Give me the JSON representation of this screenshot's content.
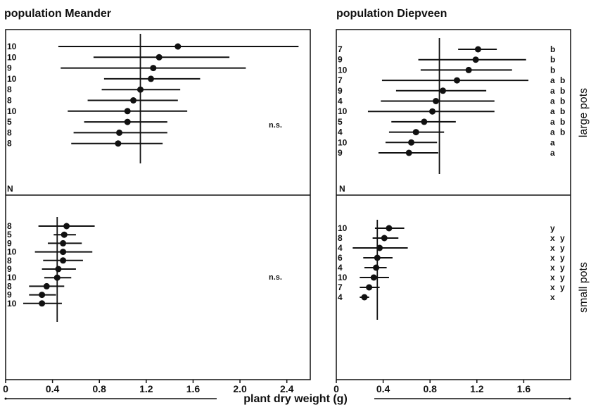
{
  "chart_data": {
    "type": "forest",
    "xlabel": "plant dry weight (g)",
    "row_labels": [
      "large pots",
      "small pots"
    ],
    "n_label": "N",
    "panels": [
      {
        "title": "population Meander",
        "xlim": [
          0,
          2.6
        ],
        "xticks": [
          0,
          0.4,
          0.8,
          1.2,
          1.6,
          2.0,
          2.4
        ],
        "xtick_labels": [
          "0",
          "0.4",
          "0.8",
          "1.2",
          "1.6",
          "2.0",
          "2.4"
        ],
        "large_pots": {
          "mean_line": 1.15,
          "annotation": "n.s.",
          "items": [
            {
              "n": "10",
              "mean": 1.47,
              "low": 0.45,
              "high": 2.5,
              "group": ""
            },
            {
              "n": "10",
              "mean": 1.31,
              "low": 0.75,
              "high": 1.91,
              "group": ""
            },
            {
              "n": "9",
              "mean": 1.26,
              "low": 0.47,
              "high": 2.05,
              "group": ""
            },
            {
              "n": "10",
              "mean": 1.24,
              "low": 0.84,
              "high": 1.66,
              "group": ""
            },
            {
              "n": "8",
              "mean": 1.15,
              "low": 0.82,
              "high": 1.49,
              "group": ""
            },
            {
              "n": "8",
              "mean": 1.09,
              "low": 0.7,
              "high": 1.47,
              "group": ""
            },
            {
              "n": "10",
              "mean": 1.04,
              "low": 0.53,
              "high": 1.55,
              "group": ""
            },
            {
              "n": "5",
              "mean": 1.04,
              "low": 0.67,
              "high": 1.38,
              "group": ""
            },
            {
              "n": "8",
              "mean": 0.97,
              "low": 0.58,
              "high": 1.38,
              "group": ""
            },
            {
              "n": "8",
              "mean": 0.96,
              "low": 0.56,
              "high": 1.34,
              "group": ""
            }
          ]
        },
        "small_pots": {
          "mean_line": 0.44,
          "annotation": "n.s.",
          "items": [
            {
              "n": "8",
              "mean": 0.52,
              "low": 0.28,
              "high": 0.76,
              "group": ""
            },
            {
              "n": "5",
              "mean": 0.5,
              "low": 0.41,
              "high": 0.6,
              "group": ""
            },
            {
              "n": "9",
              "mean": 0.49,
              "low": 0.36,
              "high": 0.65,
              "group": ""
            },
            {
              "n": "10",
              "mean": 0.49,
              "low": 0.25,
              "high": 0.74,
              "group": ""
            },
            {
              "n": "8",
              "mean": 0.49,
              "low": 0.32,
              "high": 0.66,
              "group": ""
            },
            {
              "n": "9",
              "mean": 0.45,
              "low": 0.31,
              "high": 0.6,
              "group": ""
            },
            {
              "n": "10",
              "mean": 0.44,
              "low": 0.33,
              "high": 0.56,
              "group": ""
            },
            {
              "n": "8",
              "mean": 0.35,
              "low": 0.2,
              "high": 0.5,
              "group": ""
            },
            {
              "n": "9",
              "mean": 0.31,
              "low": 0.2,
              "high": 0.43,
              "group": ""
            },
            {
              "n": "10",
              "mean": 0.31,
              "low": 0.15,
              "high": 0.48,
              "group": ""
            }
          ]
        }
      },
      {
        "title": "population Diepveen",
        "xlim": [
          0,
          2.0
        ],
        "xticks": [
          0,
          0.4,
          0.8,
          1.2,
          1.6
        ],
        "xtick_labels": [
          "0",
          "0.4",
          "0.8",
          "1.2",
          "1.6"
        ],
        "large_pots": {
          "mean_line": 0.88,
          "annotation": "",
          "items": [
            {
              "n": "7",
              "mean": 1.21,
              "low": 1.04,
              "high": 1.37,
              "group": "b"
            },
            {
              "n": "9",
              "mean": 1.19,
              "low": 0.7,
              "high": 1.62,
              "group": "b"
            },
            {
              "n": "10",
              "mean": 1.13,
              "low": 0.72,
              "high": 1.5,
              "group": "b"
            },
            {
              "n": "7",
              "mean": 1.03,
              "low": 0.39,
              "high": 1.64,
              "group": "ab"
            },
            {
              "n": "9",
              "mean": 0.91,
              "low": 0.51,
              "high": 1.28,
              "group": "ab"
            },
            {
              "n": "4",
              "mean": 0.85,
              "low": 0.38,
              "high": 1.35,
              "group": "ab"
            },
            {
              "n": "10",
              "mean": 0.82,
              "low": 0.27,
              "high": 1.35,
              "group": "ab"
            },
            {
              "n": "5",
              "mean": 0.75,
              "low": 0.47,
              "high": 1.02,
              "group": "ab"
            },
            {
              "n": "4",
              "mean": 0.68,
              "low": 0.45,
              "high": 0.92,
              "group": "ab"
            },
            {
              "n": "10",
              "mean": 0.64,
              "low": 0.42,
              "high": 0.86,
              "group": "a"
            },
            {
              "n": "9",
              "mean": 0.62,
              "low": 0.36,
              "high": 0.87,
              "group": "a"
            }
          ]
        },
        "small_pots": {
          "mean_line": 0.35,
          "annotation": "",
          "items": [
            {
              "n": "10",
              "mean": 0.45,
              "low": 0.33,
              "high": 0.58,
              "group": "y"
            },
            {
              "n": "8",
              "mean": 0.41,
              "low": 0.31,
              "high": 0.53,
              "group": "xy"
            },
            {
              "n": "4",
              "mean": 0.37,
              "low": 0.14,
              "high": 0.61,
              "group": "xy"
            },
            {
              "n": "6",
              "mean": 0.35,
              "low": 0.23,
              "high": 0.48,
              "group": "xy"
            },
            {
              "n": "4",
              "mean": 0.34,
              "low": 0.24,
              "high": 0.43,
              "group": "xy"
            },
            {
              "n": "10",
              "mean": 0.32,
              "low": 0.2,
              "high": 0.45,
              "group": "xy"
            },
            {
              "n": "7",
              "mean": 0.28,
              "low": 0.2,
              "high": 0.37,
              "group": "xy"
            },
            {
              "n": "4",
              "mean": 0.24,
              "low": 0.2,
              "high": 0.28,
              "group": "x"
            }
          ]
        }
      }
    ]
  }
}
